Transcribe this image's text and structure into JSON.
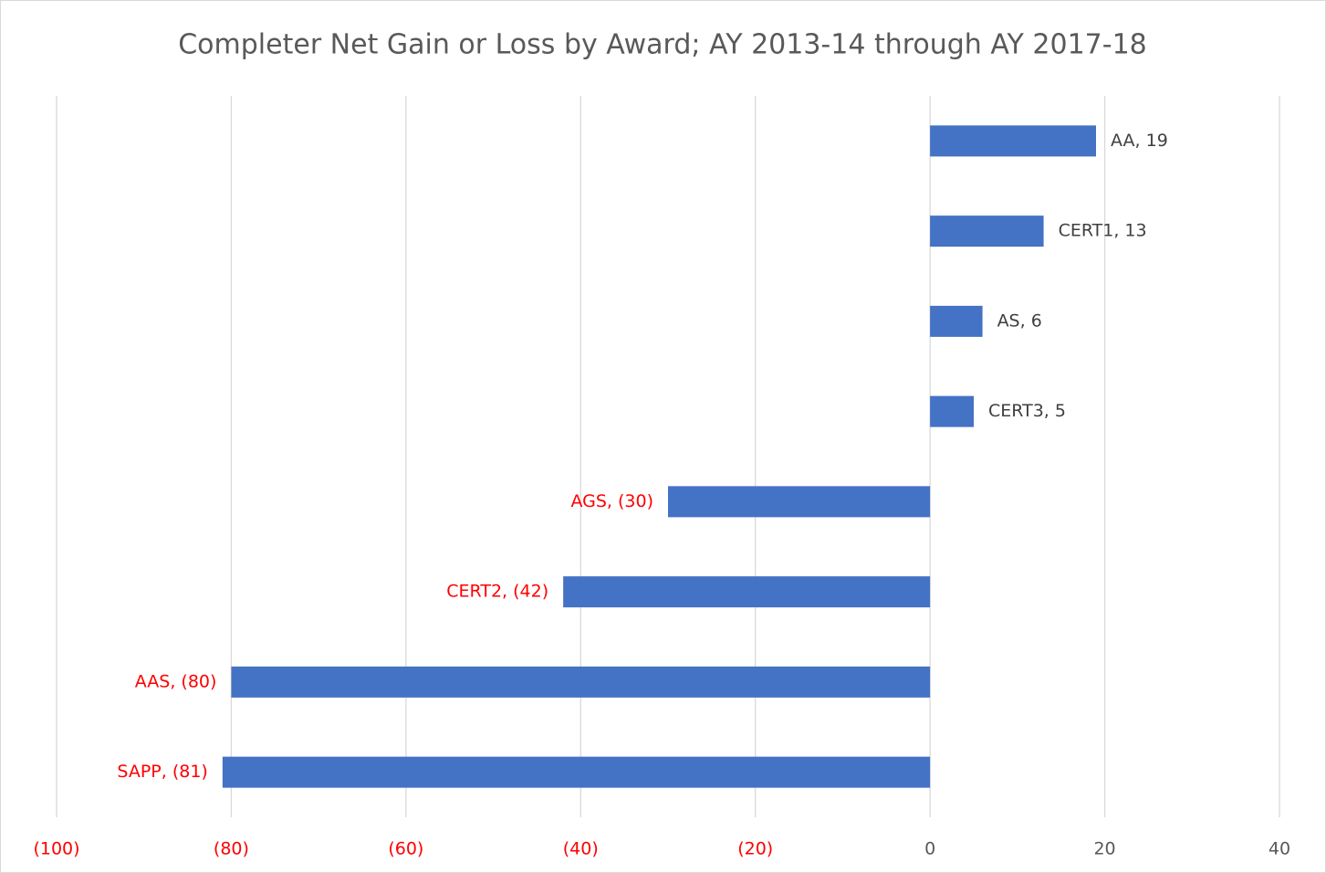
{
  "chart_data": {
    "type": "bar",
    "orientation": "horizontal",
    "title": "Completer Net Gain or Loss by Award; AY 2013-14 through AY 2017-18",
    "categories": [
      "AA",
      "CERT1",
      "AS",
      "CERT3",
      "AGS",
      "CERT2",
      "AAS",
      "SAPP"
    ],
    "values": [
      19,
      13,
      6,
      5,
      -30,
      -42,
      -80,
      -81
    ],
    "value_labels": [
      "AA, 19",
      "CERT1, 13",
      "AS, 6",
      "CERT3, 5",
      "AGS, (30)",
      "CERT2, (42)",
      "AAS, (80)",
      "SAPP, (81)"
    ],
    "color": "#4472c4",
    "negative_label_color": "#ff0000",
    "xlim": [
      -100,
      40
    ],
    "xticks": [
      {
        "value": -100,
        "label": "(100)"
      },
      {
        "value": -80,
        "label": "(80)"
      },
      {
        "value": -60,
        "label": "(60)"
      },
      {
        "value": -40,
        "label": "(40)"
      },
      {
        "value": -20,
        "label": "(20)"
      },
      0,
      20,
      40
    ],
    "grid": true
  }
}
